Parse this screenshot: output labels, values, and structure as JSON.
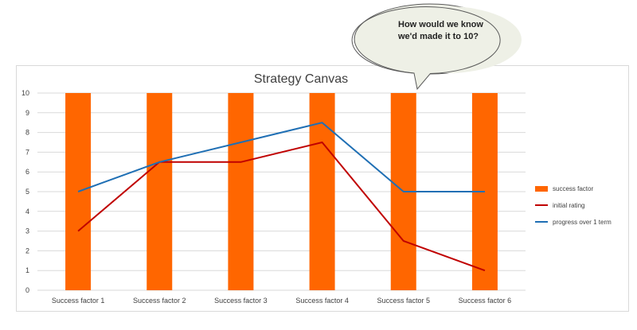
{
  "chart_data": {
    "type": "bar",
    "title": "Strategy Canvas",
    "categories": [
      "Success factor 1",
      "Success factor 2",
      "Success factor 3",
      "Success factor 4",
      "Success factor 5",
      "Success factor 6"
    ],
    "ylim": [
      0,
      10
    ],
    "yticks": [
      0,
      1,
      2,
      3,
      4,
      5,
      6,
      7,
      8,
      9,
      10
    ],
    "grid": true,
    "legend": "right",
    "series": [
      {
        "name": "success factor",
        "kind": "bar",
        "color": "#ff6600",
        "values": [
          10,
          10,
          10,
          10,
          10,
          10
        ]
      },
      {
        "name": "initial rating",
        "kind": "line",
        "color": "#c00000",
        "values": [
          3,
          6.5,
          6.5,
          7.5,
          2.5,
          1
        ]
      },
      {
        "name": "progress over 1 term",
        "kind": "line",
        "color": "#1f6fb4",
        "values": [
          5,
          6.5,
          7.5,
          8.5,
          5,
          5
        ]
      }
    ]
  },
  "callout": {
    "lines": [
      "How would we know",
      "we'd made it to 10?"
    ]
  }
}
